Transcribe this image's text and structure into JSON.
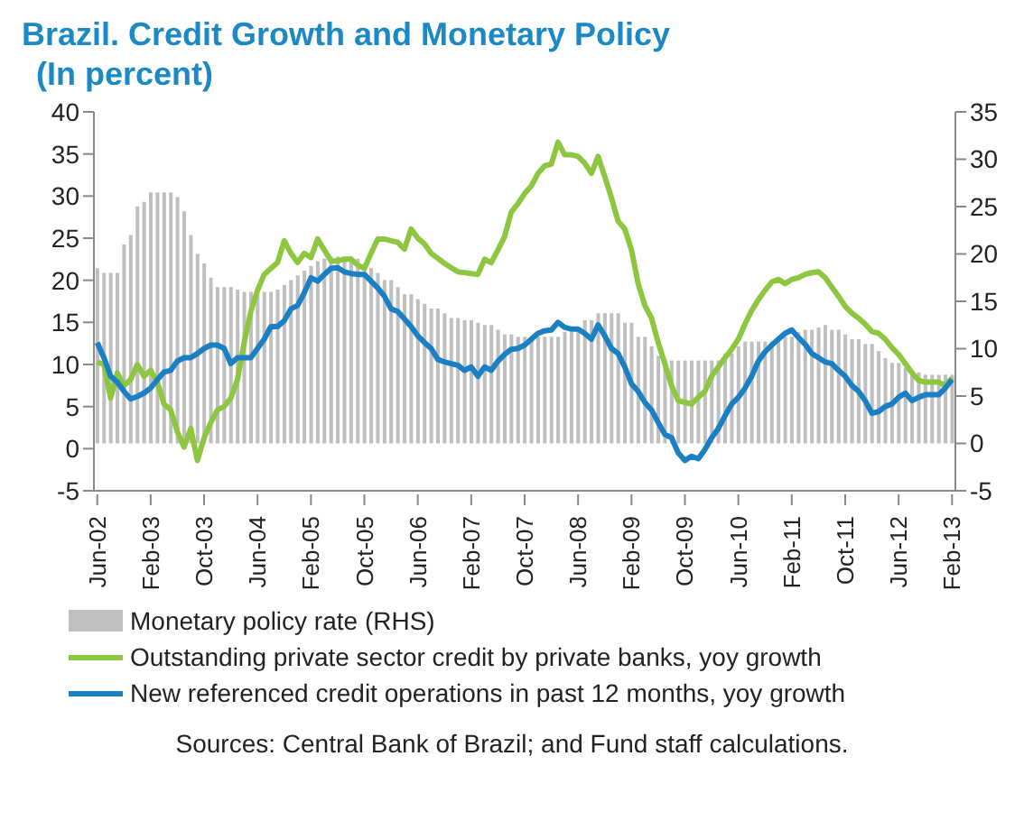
{
  "chart_data": {
    "type": "bar",
    "title": "Brazil. Credit Growth and Monetary Policy",
    "subtitle": "(In percent)",
    "categories": [
      "Jun-02",
      null,
      null,
      null,
      null,
      null,
      null,
      null,
      "Feb-03",
      null,
      null,
      null,
      null,
      null,
      null,
      null,
      "Oct-03",
      null,
      null,
      null,
      null,
      null,
      null,
      null,
      "Jun-04",
      null,
      null,
      null,
      null,
      null,
      null,
      null,
      "Feb-05",
      null,
      null,
      null,
      null,
      null,
      null,
      null,
      "Oct-05",
      null,
      null,
      null,
      null,
      null,
      null,
      null,
      "Jun-06",
      null,
      null,
      null,
      null,
      null,
      null,
      null,
      "Feb-07",
      null,
      null,
      null,
      null,
      null,
      null,
      null,
      "Oct-07",
      null,
      null,
      null,
      null,
      null,
      null,
      null,
      "Jun-08",
      null,
      null,
      null,
      null,
      null,
      null,
      null,
      "Feb-09",
      null,
      null,
      null,
      null,
      null,
      null,
      null,
      "Oct-09",
      null,
      null,
      null,
      null,
      null,
      null,
      null,
      "Jun-10",
      null,
      null,
      null,
      null,
      null,
      null,
      null,
      "Feb-11",
      null,
      null,
      null,
      null,
      null,
      null,
      null,
      "Oct-11",
      null,
      null,
      null,
      null,
      null,
      null,
      null,
      "Jun-12",
      null,
      null,
      null,
      null,
      null,
      null,
      null,
      "Feb-13"
    ],
    "series": [
      {
        "name": "Monetary policy rate (RHS)",
        "axis": "y2",
        "color": "#bfbfbf",
        "values": [
          18.5,
          18,
          18,
          18,
          21,
          22,
          25,
          25.5,
          26.5,
          26.5,
          26.5,
          26.5,
          26,
          24.5,
          22,
          20,
          19,
          17.5,
          16.5,
          16.5,
          16.5,
          16.25,
          16,
          16,
          16,
          16,
          16,
          16.25,
          16.75,
          17.25,
          17.75,
          18.25,
          18.75,
          19.25,
          19.5,
          19.75,
          19.75,
          19.75,
          19.75,
          19.5,
          19,
          18.5,
          18,
          17.25,
          17.25,
          16.5,
          15.75,
          15.75,
          15.25,
          14.75,
          14.25,
          14.25,
          13.75,
          13.25,
          13.25,
          13,
          13,
          12.75,
          12.5,
          12.5,
          12,
          11.5,
          11.5,
          11.25,
          11.25,
          11.25,
          11.25,
          11.25,
          11.25,
          11.25,
          11.75,
          11.75,
          12.25,
          13,
          13,
          13.75,
          13.75,
          13.75,
          13.75,
          12.75,
          12.75,
          11.25,
          11.25,
          10.25,
          9.25,
          8.75,
          8.75,
          8.75,
          8.75,
          8.75,
          8.75,
          8.75,
          8.75,
          8.75,
          9.5,
          9.5,
          10.25,
          10.75,
          10.75,
          10.75,
          10.75,
          10.75,
          10.75,
          11.25,
          11.25,
          11.75,
          12,
          12,
          12.25,
          12.5,
          12,
          12,
          11.5,
          11,
          11,
          10.5,
          10.5,
          9.75,
          9,
          8.5,
          8.5,
          8,
          7.5,
          7.5,
          7.25,
          7.25,
          7.25,
          7.25,
          7.25
        ]
      },
      {
        "name": "Outstanding private sector credit by private banks, yoy growth",
        "type": "line",
        "color": "#8dc63f",
        "values": [
          10.3,
          10,
          6,
          9,
          7.5,
          8.2,
          10,
          8.6,
          9.3,
          7.9,
          5.3,
          4.6,
          2,
          0.2,
          2.4,
          -1.4,
          1.3,
          3.1,
          4.6,
          5,
          6,
          8.2,
          12.6,
          16.3,
          18.8,
          20.7,
          21.4,
          22.1,
          24.7,
          23.2,
          22.1,
          23.2,
          22.7,
          24.9,
          23.6,
          22.3,
          22.3,
          22.5,
          22.5,
          21.8,
          21.4,
          23.2,
          24.9,
          24.9,
          24.7,
          24.5,
          23.7,
          26.1,
          25,
          24.3,
          23.2,
          22.6,
          22,
          21.5,
          21,
          20.9,
          20.8,
          20.7,
          22.5,
          22.1,
          23.6,
          25.2,
          28.1,
          29.1,
          30.3,
          31.2,
          32.7,
          33.6,
          33.8,
          36.4,
          34.9,
          34.9,
          34.7,
          33.9,
          32.7,
          34.7,
          32.3,
          29.8,
          27,
          26.1,
          23.6,
          19.6,
          17,
          15.5,
          12.6,
          10.1,
          7.5,
          5.7,
          5.5,
          5.3,
          6.1,
          6.8,
          8.6,
          9.7,
          10.8,
          11.8,
          13,
          14.8,
          16.4,
          17.7,
          18.8,
          19.8,
          20.1,
          19.6,
          20.1,
          20.3,
          20.7,
          20.9,
          21,
          20.3,
          19.2,
          18.1,
          16.9,
          16.1,
          15.5,
          14.8,
          13.9,
          13.7,
          13,
          12,
          11.2,
          10.1,
          9,
          8.1,
          7.9,
          7.9,
          7.9,
          7.5,
          8.4
        ]
      },
      {
        "name": "New referenced credit operations in past 12 months, yoy growth",
        "type": "line",
        "color": "#1b7fc3",
        "values": [
          12.6,
          10.8,
          8.6,
          7.9,
          6.8,
          5.9,
          6.2,
          6.6,
          7.2,
          8.2,
          9.1,
          9.3,
          10.4,
          10.8,
          10.8,
          11.3,
          11.9,
          12.3,
          12.3,
          11.9,
          10.1,
          10.8,
          10.8,
          10.8,
          11.9,
          13,
          14.5,
          14.5,
          15.2,
          16.6,
          17,
          18.5,
          20.3,
          19.9,
          20.7,
          21.4,
          21.5,
          21,
          20.8,
          20.7,
          20.7,
          19.9,
          19.1,
          18.1,
          16.6,
          16.3,
          15.4,
          14.5,
          13.4,
          12.6,
          11.9,
          10.6,
          10.3,
          10.1,
          9.9,
          9.3,
          9.7,
          8.6,
          9.7,
          9.3,
          10.4,
          11.2,
          11.8,
          11.9,
          12.3,
          13,
          13.7,
          14,
          14.1,
          15,
          14.4,
          14.2,
          14.2,
          13.7,
          13,
          14.7,
          13.4,
          11.9,
          11.3,
          9.7,
          7.7,
          6.8,
          5.5,
          4.6,
          3.1,
          1.7,
          1.3,
          -0.5,
          -1.4,
          -0.9,
          -1.2,
          -0.1,
          1.3,
          2.4,
          3.9,
          5.3,
          6.1,
          7.2,
          8.6,
          10.4,
          11.5,
          12.3,
          13,
          13.7,
          14.1,
          13.2,
          12.4,
          11.3,
          10.8,
          10.3,
          10.1,
          9.3,
          8.6,
          7.5,
          6.8,
          5.7,
          4.2,
          4.4,
          5,
          5.3,
          6.1,
          6.6,
          5.7,
          6.1,
          6.4,
          6.4,
          6.4,
          7.2,
          8.2
        ]
      }
    ],
    "ylim": [
      -5,
      40
    ],
    "yticks": [
      -5,
      0,
      5,
      10,
      15,
      20,
      25,
      30,
      35,
      40
    ],
    "y2lim": [
      -5,
      35
    ],
    "y2ticks": [
      -5,
      0,
      5,
      10,
      15,
      20,
      25,
      30,
      35
    ],
    "legend": "bottom",
    "annotations": [
      "Sources: Central Bank of Brazil; and Fund staff calculations."
    ]
  }
}
